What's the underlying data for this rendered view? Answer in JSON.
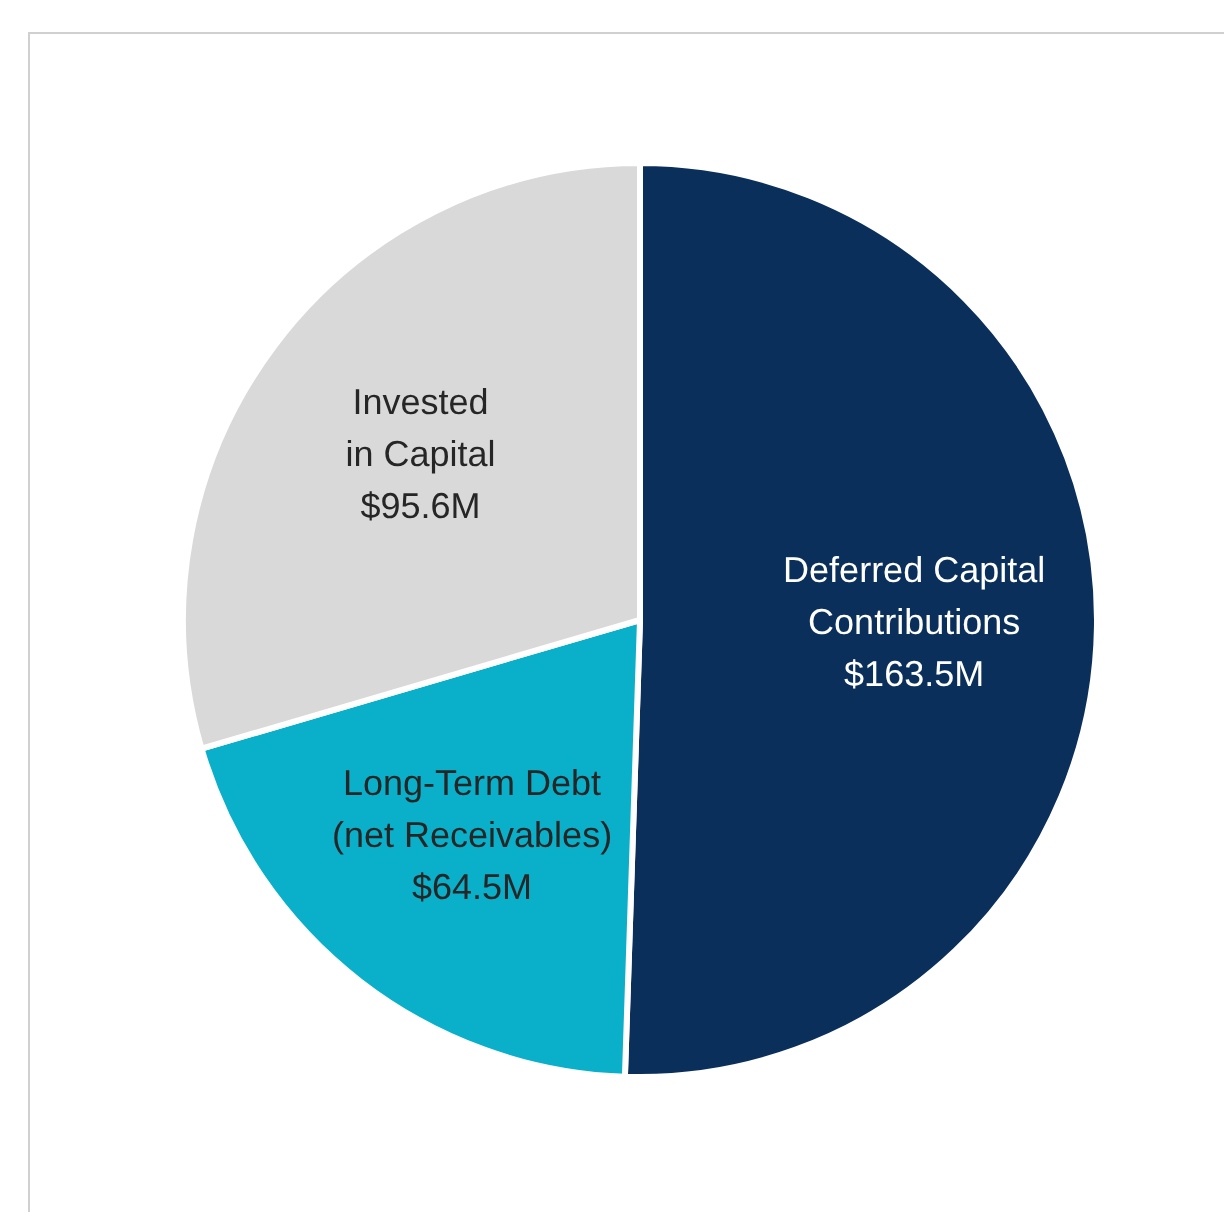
{
  "chart_data": {
    "type": "pie",
    "categories": [
      "Deferred Capital\nContributions",
      "Long-Term Debt\n(net Receivables)",
      "Invested\nin Capital"
    ],
    "values": [
      163.5,
      64.5,
      95.6
    ],
    "colors": [
      "#0b2f5b",
      "#0aafc9",
      "#d9d9d9"
    ],
    "value_labels": [
      "$163.5M",
      "$64.5M",
      "$95.6M"
    ],
    "legend": false
  }
}
